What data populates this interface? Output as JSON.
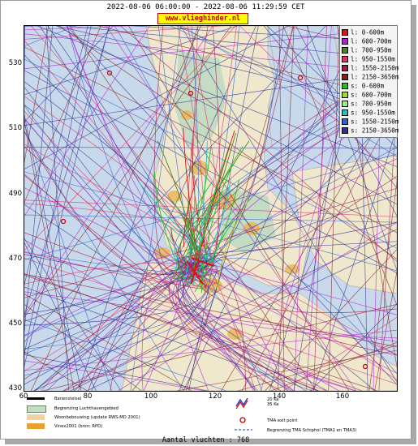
{
  "header": {
    "time_range": "2022-08-06 06:00:00 - 2022-08-06 11:29:59 CET",
    "website": "www.vlieghinder.nl"
  },
  "axes": {
    "y_ticks": [
      "530",
      "510",
      "490",
      "470",
      "450",
      "430"
    ],
    "x_ticks": [
      "60",
      "80",
      "100",
      "120",
      "140",
      "160"
    ]
  },
  "legend": {
    "items": [
      {
        "label": "l: 0-600m",
        "color": "#e01010"
      },
      {
        "label": "l: 600-700m",
        "color": "#b020d0"
      },
      {
        "label": "l: 700-950m",
        "color": "#508020"
      },
      {
        "label": "l: 950-1550m",
        "color": "#e0306a"
      },
      {
        "label": "l: 1550-2150m",
        "color": "#a01850"
      },
      {
        "label": "l: 2150-3650m",
        "color": "#802020"
      },
      {
        "label": "s: 0-600m",
        "color": "#20c020"
      },
      {
        "label": "s: 600-700m",
        "color": "#a0e020"
      },
      {
        "label": "s: 700-950m",
        "color": "#90f090"
      },
      {
        "label": "s: 950-1550m",
        "color": "#20c0c0"
      },
      {
        "label": "s: 1550-2150m",
        "color": "#3060d0"
      },
      {
        "label": "s: 2150-3650m",
        "color": "#303090"
      }
    ]
  },
  "map_legend": {
    "runway": "Banenstelsel",
    "airport_boundary": "Begrenzing Luchthavengebied",
    "housing": "Woonbebouwing (update RWS-MD 2001)",
    "vinex": "Vinex2001 (bron: RPD)",
    "noise_20ke": "20 Ke",
    "noise_35ke": "35 Ke",
    "tma_exit": "TMA exit point",
    "tma_boundary": "Begrenzing TMA Schiphol  (TMA1 en TMA3)"
  },
  "footer": {
    "flight_count": "Aantal vluchten : 768"
  },
  "colors": {
    "sea": "#c9d9ec",
    "land": "#efe8cc",
    "urban": "#e9b85a",
    "green": "#c4dcc4"
  }
}
